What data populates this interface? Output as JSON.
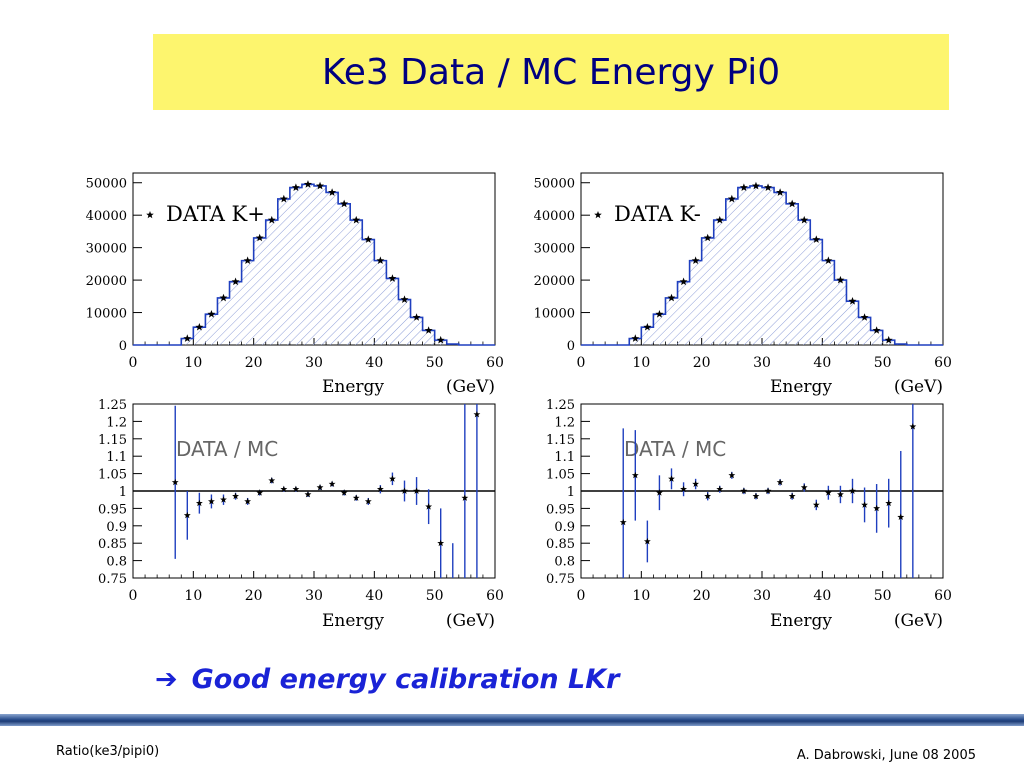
{
  "slide": {
    "title": "Ke3 Data / MC Energy Pi0",
    "conclusion_arrow": "➔",
    "conclusion_text": "Good energy calibration LKr",
    "footer_left": "Ratio(ke3/pipi0)",
    "footer_right": "A. Dabrowski, June 08 2005"
  },
  "colors": {
    "title_background": "#fdf56e",
    "title_text": "#000080",
    "conclusion_text": "#1a23d6",
    "histogram": "#1f3fbf",
    "hatch": "#8e9ed8",
    "error_bar": "#1f3fbf",
    "reference_line": "#000000"
  },
  "chart_data": [
    {
      "type": "bar",
      "panel": "top-left",
      "legend": "DATA  K+",
      "xlabel": "Energy",
      "xlabel_unit": "(GeV)",
      "xlim": [
        0,
        60
      ],
      "ylim": [
        0,
        53000
      ],
      "xticks": [
        0,
        10,
        20,
        30,
        40,
        50,
        60
      ],
      "yticks": [
        0,
        10000,
        20000,
        30000,
        40000,
        50000
      ],
      "ytick_labels": [
        "0",
        "10000",
        "20000",
        "30000",
        "40000",
        "50000"
      ],
      "x": [
        7,
        9,
        11,
        13,
        15,
        17,
        19,
        21,
        23,
        25,
        27,
        29,
        31,
        33,
        35,
        37,
        39,
        41,
        43,
        45,
        47,
        49,
        51,
        53,
        55
      ],
      "mc": [
        0,
        2000,
        5500,
        9500,
        14500,
        19500,
        26000,
        33000,
        38500,
        45000,
        48500,
        49500,
        49000,
        47000,
        43500,
        38500,
        32500,
        26000,
        20500,
        14000,
        8500,
        4500,
        1500,
        300,
        0
      ],
      "data": [
        null,
        2000,
        5500,
        9500,
        14500,
        19500,
        26000,
        33000,
        38500,
        45000,
        48500,
        49500,
        49000,
        47000,
        43500,
        38500,
        32500,
        26000,
        20500,
        14000,
        8500,
        4500,
        1500,
        null,
        null
      ]
    },
    {
      "type": "bar",
      "panel": "top-right",
      "legend": "DATA  K-",
      "xlabel": "Energy",
      "xlabel_unit": "(GeV)",
      "xlim": [
        0,
        60
      ],
      "ylim": [
        0,
        53000
      ],
      "xticks": [
        0,
        10,
        20,
        30,
        40,
        50,
        60
      ],
      "yticks": [
        0,
        10000,
        20000,
        30000,
        40000,
        50000
      ],
      "ytick_labels": [
        "0",
        "10000",
        "20000",
        "30000",
        "40000",
        "50000"
      ],
      "x": [
        7,
        9,
        11,
        13,
        15,
        17,
        19,
        21,
        23,
        25,
        27,
        29,
        31,
        33,
        35,
        37,
        39,
        41,
        43,
        45,
        47,
        49,
        51,
        53,
        55
      ],
      "mc": [
        0,
        2000,
        5500,
        9500,
        14500,
        19500,
        26000,
        33000,
        38500,
        45000,
        48500,
        49000,
        48500,
        47000,
        43500,
        38500,
        32500,
        26000,
        20000,
        13500,
        8500,
        4500,
        1500,
        300,
        0
      ],
      "data": [
        null,
        2000,
        5500,
        9500,
        14500,
        19500,
        26000,
        33000,
        38500,
        45000,
        48500,
        49000,
        48500,
        47000,
        43500,
        38500,
        32500,
        26000,
        20000,
        13500,
        8500,
        4500,
        1500,
        null,
        null
      ]
    },
    {
      "type": "scatter",
      "panel": "bottom-left",
      "annotation": "DATA / MC",
      "xlabel": "Energy",
      "xlabel_unit": "(GeV)",
      "xlim": [
        0,
        60
      ],
      "ylim": [
        0.75,
        1.25
      ],
      "reference": 1,
      "xticks": [
        0,
        10,
        20,
        30,
        40,
        50,
        60
      ],
      "yticks": [
        0.75,
        0.8,
        0.85,
        0.9,
        0.95,
        1,
        1.05,
        1.1,
        1.15,
        1.2,
        1.25
      ],
      "ytick_labels": [
        "0.75",
        "0.8",
        "0.85",
        "0.9",
        "0.95",
        "1",
        "1.05",
        "1.1",
        "1.15",
        "1.2",
        "1.25"
      ],
      "points": [
        {
          "x": 7,
          "y": 1.025,
          "err": 0.22
        },
        {
          "x": 9,
          "y": 0.93,
          "err": 0.07
        },
        {
          "x": 11,
          "y": 0.965,
          "err": 0.03
        },
        {
          "x": 13,
          "y": 0.97,
          "err": 0.02
        },
        {
          "x": 15,
          "y": 0.975,
          "err": 0.015
        },
        {
          "x": 17,
          "y": 0.985,
          "err": 0.01
        },
        {
          "x": 19,
          "y": 0.97,
          "err": 0.01
        },
        {
          "x": 21,
          "y": 0.995,
          "err": 0.008
        },
        {
          "x": 23,
          "y": 1.03,
          "err": 0.008
        },
        {
          "x": 25,
          "y": 1.005,
          "err": 0.007
        },
        {
          "x": 27,
          "y": 1.005,
          "err": 0.007
        },
        {
          "x": 29,
          "y": 0.99,
          "err": 0.007
        },
        {
          "x": 31,
          "y": 1.01,
          "err": 0.007
        },
        {
          "x": 33,
          "y": 1.02,
          "err": 0.007
        },
        {
          "x": 35,
          "y": 0.995,
          "err": 0.008
        },
        {
          "x": 37,
          "y": 0.98,
          "err": 0.008
        },
        {
          "x": 39,
          "y": 0.97,
          "err": 0.01
        },
        {
          "x": 41,
          "y": 1.005,
          "err": 0.012
        },
        {
          "x": 43,
          "y": 1.035,
          "err": 0.018
        },
        {
          "x": 45,
          "y": 1.0,
          "err": 0.03
        },
        {
          "x": 47,
          "y": 1.0,
          "err": 0.04
        },
        {
          "x": 49,
          "y": 0.955,
          "err": 0.05
        },
        {
          "x": 51,
          "y": 0.85,
          "err": 0.1
        },
        {
          "x": 53,
          "y": null,
          "err": null,
          "bar": [
            0.75,
            0.85
          ]
        },
        {
          "x": 55,
          "y": 0.98,
          "err": 0.3
        },
        {
          "x": 57,
          "y": 1.22,
          "err": 0.5
        }
      ]
    },
    {
      "type": "scatter",
      "panel": "bottom-right",
      "annotation": "DATA / MC",
      "xlabel": "Energy",
      "xlabel_unit": "(GeV)",
      "xlim": [
        0,
        60
      ],
      "ylim": [
        0.75,
        1.25
      ],
      "reference": 1,
      "xticks": [
        0,
        10,
        20,
        30,
        40,
        50,
        60
      ],
      "yticks": [
        0.75,
        0.8,
        0.85,
        0.9,
        0.95,
        1,
        1.05,
        1.1,
        1.15,
        1.2,
        1.25
      ],
      "ytick_labels": [
        "0.75",
        "0.8",
        "0.85",
        "0.9",
        "0.95",
        "1",
        "1.05",
        "1.1",
        "1.15",
        "1.2",
        "1.25"
      ],
      "points": [
        {
          "x": 7,
          "y": 0.91,
          "err": 0.27
        },
        {
          "x": 9,
          "y": 1.045,
          "err": 0.13
        },
        {
          "x": 11,
          "y": 0.855,
          "err": 0.06
        },
        {
          "x": 13,
          "y": 0.995,
          "err": 0.05
        },
        {
          "x": 15,
          "y": 1.035,
          "err": 0.03
        },
        {
          "x": 17,
          "y": 1.005,
          "err": 0.02
        },
        {
          "x": 19,
          "y": 1.02,
          "err": 0.015
        },
        {
          "x": 21,
          "y": 0.985,
          "err": 0.012
        },
        {
          "x": 23,
          "y": 1.005,
          "err": 0.01
        },
        {
          "x": 25,
          "y": 1.045,
          "err": 0.01
        },
        {
          "x": 27,
          "y": 1.0,
          "err": 0.009
        },
        {
          "x": 29,
          "y": 0.985,
          "err": 0.009
        },
        {
          "x": 31,
          "y": 1.0,
          "err": 0.009
        },
        {
          "x": 33,
          "y": 1.025,
          "err": 0.009
        },
        {
          "x": 35,
          "y": 0.985,
          "err": 0.01
        },
        {
          "x": 37,
          "y": 1.01,
          "err": 0.012
        },
        {
          "x": 39,
          "y": 0.96,
          "err": 0.015
        },
        {
          "x": 41,
          "y": 0.995,
          "err": 0.02
        },
        {
          "x": 43,
          "y": 0.99,
          "err": 0.025
        },
        {
          "x": 45,
          "y": 1.0,
          "err": 0.035
        },
        {
          "x": 47,
          "y": 0.96,
          "err": 0.05
        },
        {
          "x": 49,
          "y": 0.95,
          "err": 0.07
        },
        {
          "x": 51,
          "y": 0.965,
          "err": 0.07
        },
        {
          "x": 53,
          "y": 0.925,
          "err": 0.19
        },
        {
          "x": 55,
          "y": 1.185,
          "err": 0.5
        }
      ]
    }
  ]
}
